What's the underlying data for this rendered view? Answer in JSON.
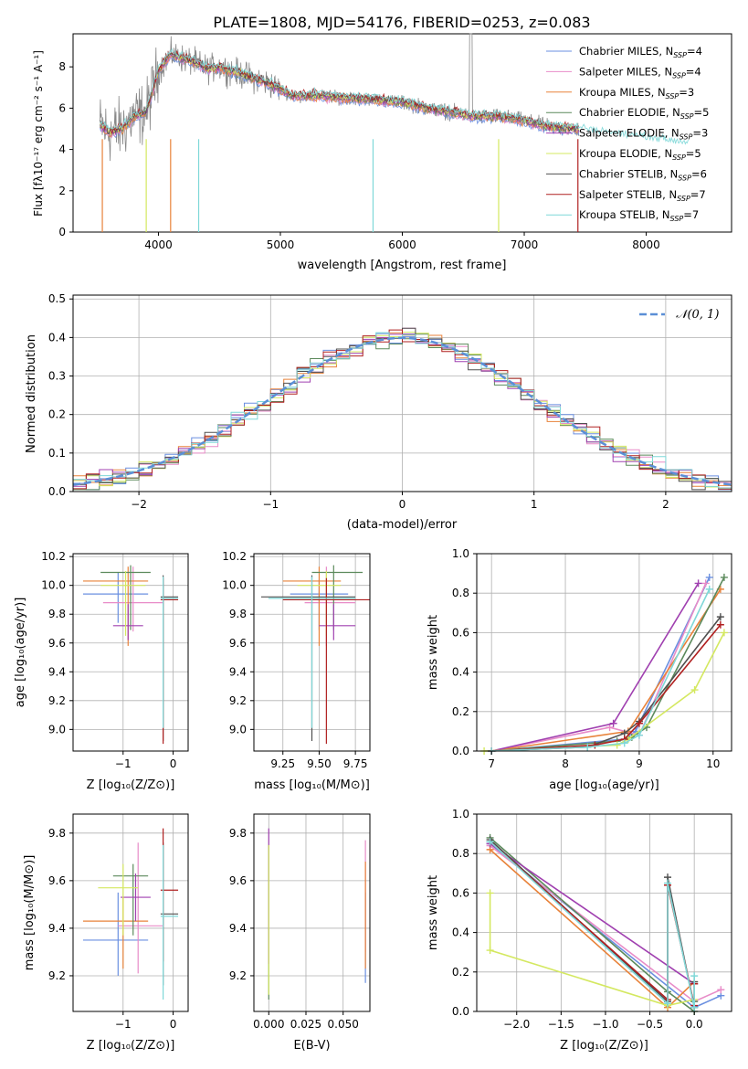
{
  "title": "PLATE=1808, MJD=54176, FIBERID=0253, z=0.083",
  "spectrum": {
    "xlabel": "wavelength [Angstrom, rest frame]",
    "ylabel": "Flux [fλ10⁻¹⁷ erg cm⁻² s⁻¹ A⁻¹]",
    "xticks": [
      "4000",
      "5000",
      "6000",
      "7000",
      "8000"
    ],
    "yticks": [
      "0",
      "2",
      "4",
      "6",
      "8"
    ],
    "legend": [
      {
        "label": "Chabrier MILES, N",
        "sub": "SSP",
        "suffix": "=4"
      },
      {
        "label": "Salpeter MILES, N",
        "sub": "SSP",
        "suffix": "=4"
      },
      {
        "label": "Kroupa MILES, N",
        "sub": "SSP",
        "suffix": "=3"
      },
      {
        "label": "Chabrier ELODIE, N",
        "sub": "SSP",
        "suffix": "=5"
      },
      {
        "label": "Salpeter ELODIE, N",
        "sub": "SSP",
        "suffix": "=3"
      },
      {
        "label": "Kroupa ELODIE, N",
        "sub": "SSP",
        "suffix": "=5"
      },
      {
        "label": "Chabrier STELIB, N",
        "sub": "SSP",
        "suffix": "=6"
      },
      {
        "label": "Salpeter STELIB, N",
        "sub": "SSP",
        "suffix": "=7"
      },
      {
        "label": "Kroupa STELIB, N",
        "sub": "SSP",
        "suffix": "=7"
      }
    ]
  },
  "residuals": {
    "xlabel": "(data-model)/error",
    "ylabel": "Normed distribution",
    "xticks": [
      "−2",
      "−1",
      "0",
      "1",
      "2"
    ],
    "yticks": [
      "0.0",
      "0.1",
      "0.2",
      "0.3",
      "0.4",
      "0.5"
    ],
    "legend": "𝒩(0, 1)"
  },
  "panel_age_z": {
    "xlabel": "Z [log₁₀(Z/Z⊙)]",
    "ylabel": "age  [log₁₀(age/yr)]",
    "xticks": [
      "−1",
      "0"
    ],
    "yticks": [
      "9.0",
      "9.2",
      "9.4",
      "9.6",
      "9.8",
      "10.0",
      "10.2"
    ]
  },
  "panel_age_mass": {
    "xlabel": "mass [log₁₀(M/M⊙)]",
    "xticks": [
      "9.25",
      "9.50",
      "9.75"
    ],
    "yticks": [
      "9.0",
      "9.2",
      "9.4",
      "9.6",
      "9.8",
      "10.0",
      "10.2"
    ]
  },
  "panel_mw_age": {
    "xlabel": "age  [log₁₀(age/yr)]",
    "ylabel": "mass weight",
    "xticks": [
      "7",
      "8",
      "9",
      "10"
    ],
    "yticks": [
      "0.0",
      "0.2",
      "0.4",
      "0.6",
      "0.8",
      "1.0"
    ]
  },
  "panel_mass_z": {
    "xlabel": "Z [log₁₀(Z/Z⊙)]",
    "ylabel": "mass [log₁₀(M/M⊙)]",
    "xticks": [
      "−1",
      "0"
    ],
    "yticks": [
      "9.2",
      "9.4",
      "9.6",
      "9.8"
    ]
  },
  "panel_mass_ebv": {
    "xlabel": "E(B-V)",
    "xticks": [
      "0.000",
      "0.025",
      "0.050"
    ],
    "yticks": [
      "9.2",
      "9.4",
      "9.6",
      "9.8"
    ]
  },
  "panel_mw_z": {
    "xlabel": "Z [log₁₀(Z/Z⊙)]",
    "ylabel": "mass weight",
    "xticks": [
      "−2.0",
      "−1.5",
      "−1.0",
      "−0.5",
      "0.0"
    ],
    "yticks": [
      "0.0",
      "0.2",
      "0.4",
      "0.6",
      "0.8",
      "1.0"
    ]
  },
  "colors": {
    "series": [
      "#6a8fe0",
      "#e88cc8",
      "#e8823a",
      "#5c8a5c",
      "#a040b0",
      "#d4e860",
      "#505050",
      "#b02020",
      "#7fd8d8"
    ],
    "data_spectrum": "#888888",
    "gauss": "#5b8fd6"
  },
  "chart_data": [
    {
      "type": "line",
      "panel": "spectrum",
      "xlim": [
        3300,
        8700
      ],
      "ylim": [
        0,
        9.6
      ],
      "series_names": [
        "Chabrier MILES",
        "Salpeter MILES",
        "Kroupa MILES",
        "Chabrier ELODIE",
        "Salpeter ELODIE",
        "Kroupa ELODIE",
        "Chabrier STELIB",
        "Salpeter STELIB",
        "Kroupa STELIB"
      ],
      "model_continuum": {
        "x": [
          3520,
          3600,
          3700,
          3800,
          3900,
          4000,
          4100,
          4200,
          4300,
          4400,
          4500,
          4700,
          4900,
          5100,
          5300,
          5500,
          5800,
          6000,
          6200,
          6400,
          6600,
          6800,
          7000,
          7200,
          7400,
          7600,
          7800,
          8000,
          8200,
          8350
        ],
        "y": [
          5.2,
          4.8,
          5.0,
          5.6,
          5.8,
          7.8,
          8.6,
          8.4,
          8.2,
          7.9,
          8.0,
          7.6,
          7.2,
          6.6,
          6.6,
          6.5,
          6.4,
          6.3,
          6.0,
          5.8,
          5.6,
          5.6,
          5.4,
          5.1,
          5.0,
          4.8,
          4.6,
          4.5,
          4.3,
          4.2
        ]
      },
      "data_extent": [
        3520,
        7450
      ]
    },
    {
      "type": "bar",
      "panel": "residuals",
      "bins": [
        -2.5,
        2.5
      ],
      "bin_width": 0.1,
      "reference": {
        "name": "N(0,1)",
        "mean": 0,
        "sigma": 1
      },
      "xlim": [
        -2.5,
        2.5
      ],
      "ylim": [
        0,
        0.51
      ]
    },
    {
      "type": "scatter",
      "panel": "age_vs_Z",
      "points": [
        {
          "x": -1.1,
          "y": 9.94,
          "xerr": [
            0.7,
            0.6
          ],
          "yerr": [
            0.2,
            0.15
          ]
        },
        {
          "x": -0.8,
          "y": 9.88,
          "xerr": [
            0.6,
            0.6
          ],
          "yerr": [
            0.2,
            0.25
          ]
        },
        {
          "x": -0.9,
          "y": 10.03,
          "xerr": [
            0.9,
            0.4
          ],
          "yerr": [
            0.45,
            0.1
          ]
        },
        {
          "x": -0.85,
          "y": 10.09,
          "xerr": [
            0.6,
            0.4
          ],
          "yerr": [
            0.4,
            0.05
          ]
        },
        {
          "x": -0.9,
          "y": 9.72,
          "xerr": [
            0.3,
            0.3
          ],
          "yerr": [
            0.1,
            0.15
          ]
        },
        {
          "x": -0.95,
          "y": 10.0,
          "xerr": [
            0.5,
            0.4
          ],
          "yerr": [
            0.35,
            0.1
          ]
        },
        {
          "x": -0.2,
          "y": 9.92,
          "xerr": [
            0.05,
            0.3
          ],
          "yerr": [
            1.0,
            0.15
          ]
        },
        {
          "x": -0.2,
          "y": 9.9,
          "xerr": [
            0.05,
            0.3
          ],
          "yerr": [
            1.0,
            0.15
          ]
        },
        {
          "x": -0.2,
          "y": 9.91,
          "xerr": [
            0.05,
            0.3
          ],
          "yerr": [
            0.9,
            0.15
          ]
        }
      ],
      "xlim": [
        -2.0,
        0.3
      ],
      "ylim": [
        8.85,
        10.22
      ]
    },
    {
      "type": "scatter",
      "panel": "age_vs_mass",
      "points": [
        {
          "x": 9.5,
          "y": 9.94,
          "xerr": [
            0.2,
            0.2
          ],
          "yerr": [
            0.25,
            0.1
          ]
        },
        {
          "x": 9.55,
          "y": 9.88,
          "xerr": [
            0.15,
            0.2
          ],
          "yerr": [
            0.3,
            0.25
          ]
        },
        {
          "x": 9.5,
          "y": 10.03,
          "xerr": [
            0.25,
            0.15
          ],
          "yerr": [
            0.45,
            0.1
          ]
        },
        {
          "x": 9.6,
          "y": 10.09,
          "xerr": [
            0.15,
            0.2
          ],
          "yerr": [
            0.4,
            0.05
          ]
        },
        {
          "x": 9.6,
          "y": 9.72,
          "xerr": [
            0.1,
            0.15
          ],
          "yerr": [
            0.1,
            0.15
          ]
        },
        {
          "x": 9.55,
          "y": 10.0,
          "xerr": [
            0.2,
            0.1
          ],
          "yerr": [
            0.35,
            0.1
          ]
        },
        {
          "x": 9.45,
          "y": 9.92,
          "xerr": [
            0.35,
            0.3
          ],
          "yerr": [
            1.0,
            0.15
          ]
        },
        {
          "x": 9.55,
          "y": 9.9,
          "xerr": [
            0.3,
            0.3
          ],
          "yerr": [
            1.0,
            0.15
          ]
        },
        {
          "x": 9.45,
          "y": 9.91,
          "xerr": [
            0.3,
            0.3
          ],
          "yerr": [
            0.9,
            0.15
          ]
        }
      ],
      "xlim": [
        9.05,
        9.85
      ],
      "ylim": [
        8.85,
        10.22
      ]
    },
    {
      "type": "line",
      "panel": "mass_weight_vs_age",
      "series": [
        {
          "name": "Chabrier MILES",
          "x": [
            7.0,
            8.8,
            8.95,
            9.95
          ],
          "y": [
            0.0,
            0.06,
            0.1,
            0.88
          ]
        },
        {
          "name": "Salpeter MILES",
          "x": [
            7.0,
            8.6,
            9.0,
            9.9
          ],
          "y": [
            0.0,
            0.12,
            0.08,
            0.85
          ]
        },
        {
          "name": "Kroupa MILES",
          "x": [
            7.0,
            8.85,
            10.1
          ],
          "y": [
            0.0,
            0.1,
            0.82
          ]
        },
        {
          "name": "Chabrier ELODIE",
          "x": [
            7.0,
            8.7,
            8.9,
            9.1,
            10.15
          ],
          "y": [
            0.0,
            0.05,
            0.07,
            0.12,
            0.88
          ]
        },
        {
          "name": "Salpeter ELODIE",
          "x": [
            7.0,
            8.65,
            9.8
          ],
          "y": [
            0.0,
            0.14,
            0.85
          ]
        },
        {
          "name": "Kroupa ELODIE",
          "x": [
            6.9,
            8.7,
            8.85,
            9.75,
            10.15
          ],
          "y": [
            0.0,
            0.03,
            0.06,
            0.31,
            0.6
          ]
        },
        {
          "name": "Chabrier STELIB",
          "x": [
            7.0,
            8.3,
            8.8,
            9.0,
            10.1
          ],
          "y": [
            0.0,
            0.02,
            0.09,
            0.15,
            0.68
          ]
        },
        {
          "name": "Salpeter STELIB",
          "x": [
            7.0,
            8.4,
            8.8,
            9.0,
            10.1
          ],
          "y": [
            0.0,
            0.03,
            0.06,
            0.14,
            0.64
          ]
        },
        {
          "name": "Kroupa STELIB",
          "x": [
            7.0,
            8.3,
            8.8,
            9.0,
            9.95
          ],
          "y": [
            0.0,
            0.02,
            0.04,
            0.08,
            0.82
          ]
        }
      ],
      "xlim": [
        6.8,
        10.25
      ],
      "ylim": [
        0,
        1.0
      ]
    },
    {
      "type": "scatter",
      "panel": "mass_vs_Z",
      "points": [
        {
          "x": -1.1,
          "y": 9.35,
          "xerr": [
            0.7,
            0.6
          ],
          "yerr": [
            0.15,
            0.2
          ]
        },
        {
          "x": -0.7,
          "y": 9.41,
          "xerr": [
            0.4,
            0.5
          ],
          "yerr": [
            0.2,
            0.35
          ]
        },
        {
          "x": -1.0,
          "y": 9.43,
          "xerr": [
            0.8,
            0.5
          ],
          "yerr": [
            0.2,
            0.1
          ]
        },
        {
          "x": -0.8,
          "y": 9.62,
          "xerr": [
            0.4,
            0.3
          ],
          "yerr": [
            0.25,
            0.05
          ]
        },
        {
          "x": -0.75,
          "y": 9.53,
          "xerr": [
            0.3,
            0.3
          ],
          "yerr": [
            0.1,
            0.1
          ]
        },
        {
          "x": -1.0,
          "y": 9.57,
          "xerr": [
            0.5,
            0.3
          ],
          "yerr": [
            0.2,
            0.1
          ]
        },
        {
          "x": -0.2,
          "y": 9.46,
          "xerr": [
            0.05,
            0.3
          ],
          "yerr": [
            0.3,
            0.3
          ]
        },
        {
          "x": -0.2,
          "y": 9.56,
          "xerr": [
            0.05,
            0.3
          ],
          "yerr": [
            0.3,
            0.26
          ]
        },
        {
          "x": -0.2,
          "y": 9.45,
          "xerr": [
            0.05,
            0.3
          ],
          "yerr": [
            0.35,
            0.3
          ]
        }
      ],
      "xlim": [
        -2.0,
        0.3
      ],
      "ylim": [
        9.05,
        9.88
      ]
    },
    {
      "type": "scatter",
      "panel": "mass_vs_EBV",
      "points": [
        {
          "x": 0.065,
          "y": 9.35,
          "yerr": [
            0.18,
            0.2
          ]
        },
        {
          "x": 0.065,
          "y": 9.5,
          "yerr": [
            0.2,
            0.27
          ]
        },
        {
          "x": 0.065,
          "y": 9.43,
          "yerr": [
            0.2,
            0.25
          ]
        },
        {
          "x": 0.0,
          "y": 9.45,
          "yerr": [
            0.35,
            0.3
          ]
        },
        {
          "x": 0.0,
          "y": 9.55,
          "yerr": [
            0.3,
            0.27
          ]
        },
        {
          "x": 0.0,
          "y": 9.47,
          "yerr": [
            0.35,
            0.28
          ]
        }
      ],
      "xlim": [
        -0.01,
        0.068
      ],
      "ylim": [
        9.05,
        9.88
      ]
    },
    {
      "type": "line",
      "panel": "mass_weight_vs_Z",
      "series": [
        {
          "name": "Chabrier MILES",
          "x": [
            -2.3,
            0.0,
            0.3
          ],
          "y": [
            0.85,
            0.02,
            0.08
          ]
        },
        {
          "name": "Salpeter MILES",
          "x": [
            -2.3,
            0.0,
            0.3
          ],
          "y": [
            0.84,
            0.05,
            0.11
          ]
        },
        {
          "name": "Kroupa MILES",
          "x": [
            -2.3,
            -0.3,
            0.0
          ],
          "y": [
            0.82,
            0.02,
            0.15
          ]
        },
        {
          "name": "Chabrier ELODIE",
          "x": [
            -2.3,
            -0.3,
            0.0,
            0.0
          ],
          "y": [
            0.88,
            0.1,
            0.0,
            0.05
          ]
        },
        {
          "name": "Salpeter ELODIE",
          "x": [
            -2.3,
            0.0
          ],
          "y": [
            0.85,
            0.14
          ]
        },
        {
          "name": "Kroupa ELODIE",
          "x": [
            -2.3,
            -2.3,
            -0.3,
            0.0
          ],
          "y": [
            0.6,
            0.31,
            0.03,
            0.06
          ]
        },
        {
          "name": "Chabrier STELIB",
          "x": [
            -2.3,
            -0.3,
            -0.3,
            0.0,
            0.0
          ],
          "y": [
            0.87,
            0.05,
            0.68,
            0.02,
            0.15
          ]
        },
        {
          "name": "Salpeter STELIB",
          "x": [
            -2.3,
            -0.3,
            -0.3,
            0.0,
            0.0
          ],
          "y": [
            0.86,
            0.06,
            0.64,
            0.03,
            0.14
          ]
        },
        {
          "name": "Kroupa STELIB",
          "x": [
            -2.3,
            -0.3,
            -0.3,
            0.0,
            0.0
          ],
          "y": [
            0.86,
            0.04,
            0.65,
            0.02,
            0.18
          ]
        }
      ],
      "xlim": [
        -2.45,
        0.42
      ],
      "ylim": [
        0,
        1.0
      ]
    }
  ]
}
